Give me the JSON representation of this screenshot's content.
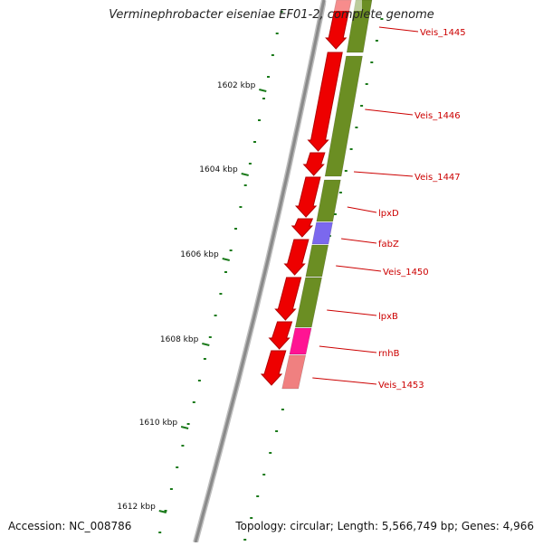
{
  "title": "Verminephrobacter eiseniae EF01-2, complete genome",
  "accession": "Accession: NC_008786",
  "topology": "Topology: circular; Length: 5,566,749 bp; Genes: 4,966",
  "colors": {
    "backbone": "#8a8a8a",
    "forward_gene": "#ee0000",
    "reverse_gene": "#6b8e23",
    "enzyme_gene": "#7b68ee",
    "rnh_gene": "#ff1493",
    "partial_gene": "#f08080",
    "label": "#cc0000",
    "ticks": "#1a7a1a"
  },
  "kbp_labels": [
    "1602 kbp",
    "1604 kbp",
    "1606 kbp",
    "1608 kbp",
    "1610 kbp",
    "1612 kbp"
  ],
  "genes": [
    {
      "name": "Veis_1445",
      "strand": "reverse",
      "color": "reverse_gene"
    },
    {
      "name": "Veis_1446",
      "strand": "reverse",
      "color": "reverse_gene"
    },
    {
      "name": "Veis_1447",
      "strand": "reverse",
      "color": "reverse_gene"
    },
    {
      "name": "lpxD",
      "strand": "reverse",
      "color": "reverse_gene"
    },
    {
      "name": "fabZ",
      "strand": "reverse",
      "color": "enzyme_gene"
    },
    {
      "name": "Veis_1450",
      "strand": "reverse",
      "color": "reverse_gene"
    },
    {
      "name": "lpxB",
      "strand": "reverse",
      "color": "reverse_gene"
    },
    {
      "name": "rnhB",
      "strand": "reverse",
      "color": "rnh_gene"
    },
    {
      "name": "Veis_1453",
      "strand": "reverse",
      "color": "partial_gene"
    }
  ]
}
